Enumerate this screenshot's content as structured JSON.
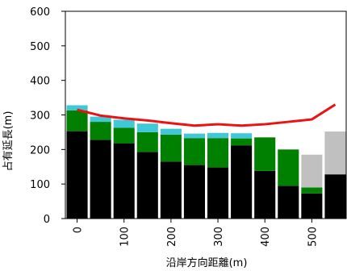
{
  "chart_data": {
    "type": "bar",
    "xlabel": "沿岸方向距離(m)",
    "ylabel": "占有延長(m)",
    "ylim": [
      0,
      600
    ],
    "y_ticks": [
      "0",
      "100",
      "200",
      "300",
      "400",
      "500",
      "600"
    ],
    "x_ticks": [
      {
        "label": "0",
        "x": 0
      },
      {
        "label": "100",
        "x": 100
      },
      {
        "label": "200",
        "x": 200
      },
      {
        "label": "300",
        "x": 300
      },
      {
        "label": "400",
        "x": 400
      },
      {
        "label": "500",
        "x": 500
      }
    ],
    "x_range": [
      -25,
      575
    ],
    "bar_x": [
      0,
      50,
      100,
      150,
      200,
      250,
      300,
      350,
      400,
      450,
      500,
      550
    ],
    "series": [
      {
        "color": "#000000",
        "values": [
          253,
          228,
          218,
          193,
          165,
          155,
          148,
          212,
          138,
          95,
          73,
          128
        ]
      },
      {
        "color": "#008000",
        "values": [
          60,
          52,
          45,
          57,
          78,
          78,
          85,
          20,
          97,
          105,
          17,
          0
        ]
      },
      {
        "color": "#c0c0c0",
        "values": [
          0,
          0,
          0,
          0,
          0,
          0,
          0,
          0,
          0,
          0,
          95,
          124
        ]
      },
      {
        "color": "#40c8d8",
        "values": [
          15,
          15,
          23,
          25,
          17,
          13,
          15,
          15,
          0,
          0,
          0,
          0
        ]
      }
    ],
    "line": {
      "color": "#ee1111",
      "x": [
        0,
        50,
        100,
        150,
        200,
        250,
        300,
        350,
        400,
        450,
        500,
        550
      ],
      "y": [
        315,
        298,
        290,
        284,
        276,
        269,
        273,
        269,
        273,
        280,
        287,
        330
      ]
    },
    "grid": false
  }
}
